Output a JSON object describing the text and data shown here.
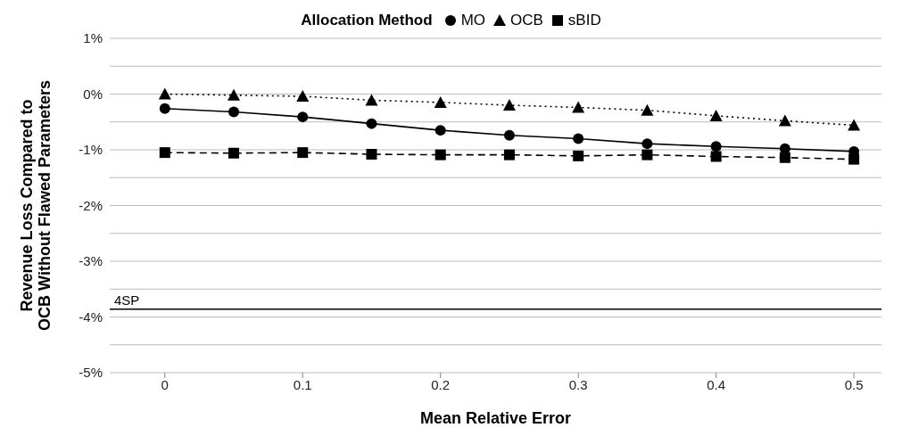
{
  "chart_data": {
    "type": "line",
    "xlabel": "Mean Relative Error",
    "ylabel": "Revenue Loss Compared to\nOCB Without Flawed Parameters",
    "legend_title": "Allocation Method",
    "legend": "top",
    "x": [
      0,
      0.05,
      0.1,
      0.15,
      0.2,
      0.25,
      0.3,
      0.35,
      0.4,
      0.45,
      0.5
    ],
    "series": [
      {
        "name": "MO",
        "color": "#000000",
        "marker": "circle",
        "line_style": "solid",
        "values": [
          -0.26,
          -0.32,
          -0.41,
          -0.53,
          -0.65,
          -0.74,
          -0.8,
          -0.89,
          -0.94,
          -0.98,
          -1.03
        ]
      },
      {
        "name": "OCB",
        "color": "#000000",
        "marker": "triangle",
        "line_style": "dotted",
        "values": [
          0,
          -0.02,
          -0.04,
          -0.11,
          -0.15,
          -0.2,
          -0.24,
          -0.29,
          -0.39,
          -0.48,
          -0.56
        ]
      },
      {
        "name": "sBID",
        "color": "#000000",
        "marker": "square",
        "line_style": "dashed",
        "values": [
          -1.05,
          -1.06,
          -1.05,
          -1.08,
          -1.09,
          -1.09,
          -1.11,
          -1.09,
          -1.12,
          -1.14,
          -1.17
        ]
      }
    ],
    "xlim": [
      -0.04,
      0.52
    ],
    "xticks": [
      0,
      0.1,
      0.2,
      0.3,
      0.4,
      0.5
    ],
    "ylim": [
      -5,
      1
    ],
    "yticks": [
      {
        "value": -5,
        "label": "-5%"
      },
      {
        "value": -4.5,
        "label": null
      },
      {
        "value": -4,
        "label": "-4%"
      },
      {
        "value": -3.5,
        "label": null
      },
      {
        "value": -3,
        "label": "-3%"
      },
      {
        "value": -2.5,
        "label": null
      },
      {
        "value": -2,
        "label": "-2%"
      },
      {
        "value": -1.5,
        "label": null
      },
      {
        "value": -1,
        "label": "-1%"
      },
      {
        "value": -0.5,
        "label": null
      },
      {
        "value": 0,
        "label": "0%"
      },
      {
        "value": 0.5,
        "label": null
      },
      {
        "value": 1,
        "label": "1%"
      }
    ],
    "grid": "y",
    "ref_lines": [
      {
        "axis": "y",
        "value": -3.86,
        "label": "4SP",
        "color": "#000000",
        "line_style": "solid"
      }
    ]
  }
}
